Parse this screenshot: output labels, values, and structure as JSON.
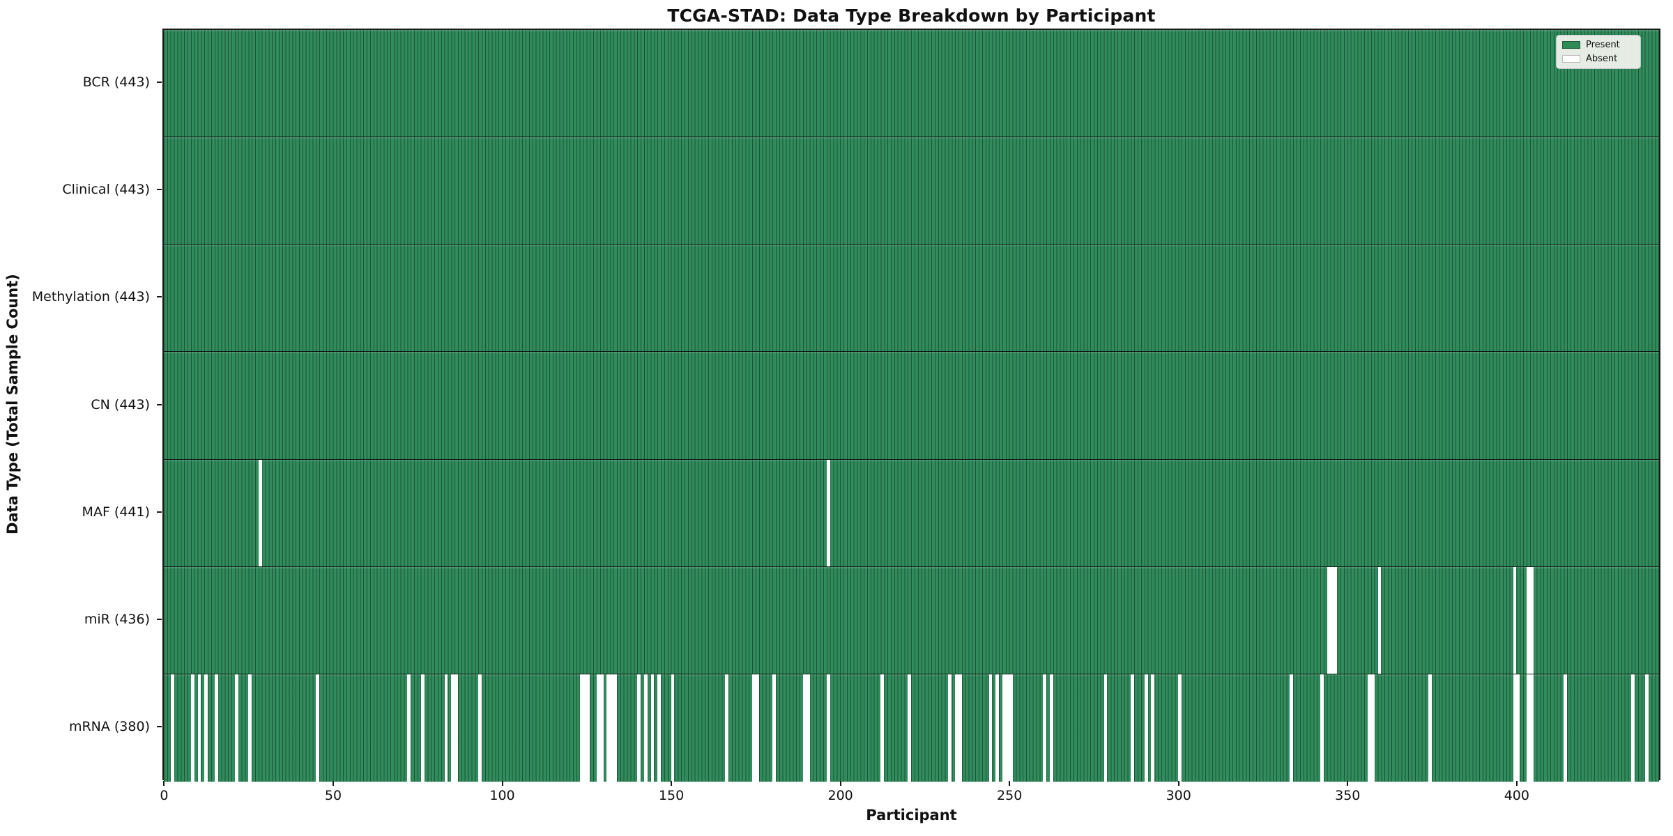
{
  "title": "TCGA-STAD: Data Type Breakdown by Participant",
  "x_axis_label": "Participant",
  "y_axis_label": "Data Type (Total Sample Count)",
  "legend": {
    "present_label": "Present",
    "absent_label": "Absent",
    "position": "upper right"
  },
  "colors": {
    "present": "#2e8b57",
    "absent": "#ffffff",
    "row_separator": "#000000",
    "plot_border": "#1a1a1a",
    "legend_background": "#f5f5f0"
  },
  "chart_data": {
    "type": "heatmap",
    "title": "TCGA-STAD: Data Type Breakdown by Participant",
    "xlabel": "Participant",
    "ylabel": "Data Type (Total Sample Count)",
    "n_participants": 443,
    "xlim": [
      0,
      443
    ],
    "x_ticks": [
      0,
      50,
      100,
      150,
      200,
      250,
      300,
      350,
      400
    ],
    "grid": true,
    "legend_entries": [
      "Present",
      "Absent"
    ],
    "legend_position": "upper right",
    "cell_states": {
      "present": 1,
      "absent": 0
    },
    "rows": [
      {
        "label": "BCR (443)",
        "data_type": "BCR",
        "present_count": 443,
        "absent_participants": []
      },
      {
        "label": "Clinical (443)",
        "data_type": "Clinical",
        "present_count": 443,
        "absent_participants": []
      },
      {
        "label": "Methylation (443)",
        "data_type": "Methylation",
        "present_count": 443,
        "absent_participants": []
      },
      {
        "label": "CN (443)",
        "data_type": "CN",
        "present_count": 443,
        "absent_participants": []
      },
      {
        "label": "MAF (441)",
        "data_type": "MAF",
        "present_count": 441,
        "absent_participants": [
          28,
          196
        ]
      },
      {
        "label": "miR (436)",
        "data_type": "miR",
        "present_count": 436,
        "absent_participants": [
          344,
          345,
          346,
          359,
          399,
          403,
          404
        ]
      },
      {
        "label": "mRNA (380)",
        "data_type": "mRNA",
        "present_count": 380,
        "absent_participants": [
          2,
          8,
          10,
          12,
          15,
          21,
          25,
          45,
          72,
          76,
          83,
          85,
          86,
          93,
          123,
          124,
          125,
          128,
          129,
          131,
          132,
          133,
          140,
          142,
          144,
          146,
          150,
          166,
          174,
          175,
          180,
          189,
          190,
          196,
          212,
          220,
          232,
          234,
          235,
          244,
          246,
          248,
          249,
          250,
          260,
          262,
          278,
          286,
          290,
          292,
          300,
          333,
          342,
          356,
          357,
          374,
          399,
          400,
          403,
          404,
          414,
          434,
          438
        ]
      }
    ]
  }
}
